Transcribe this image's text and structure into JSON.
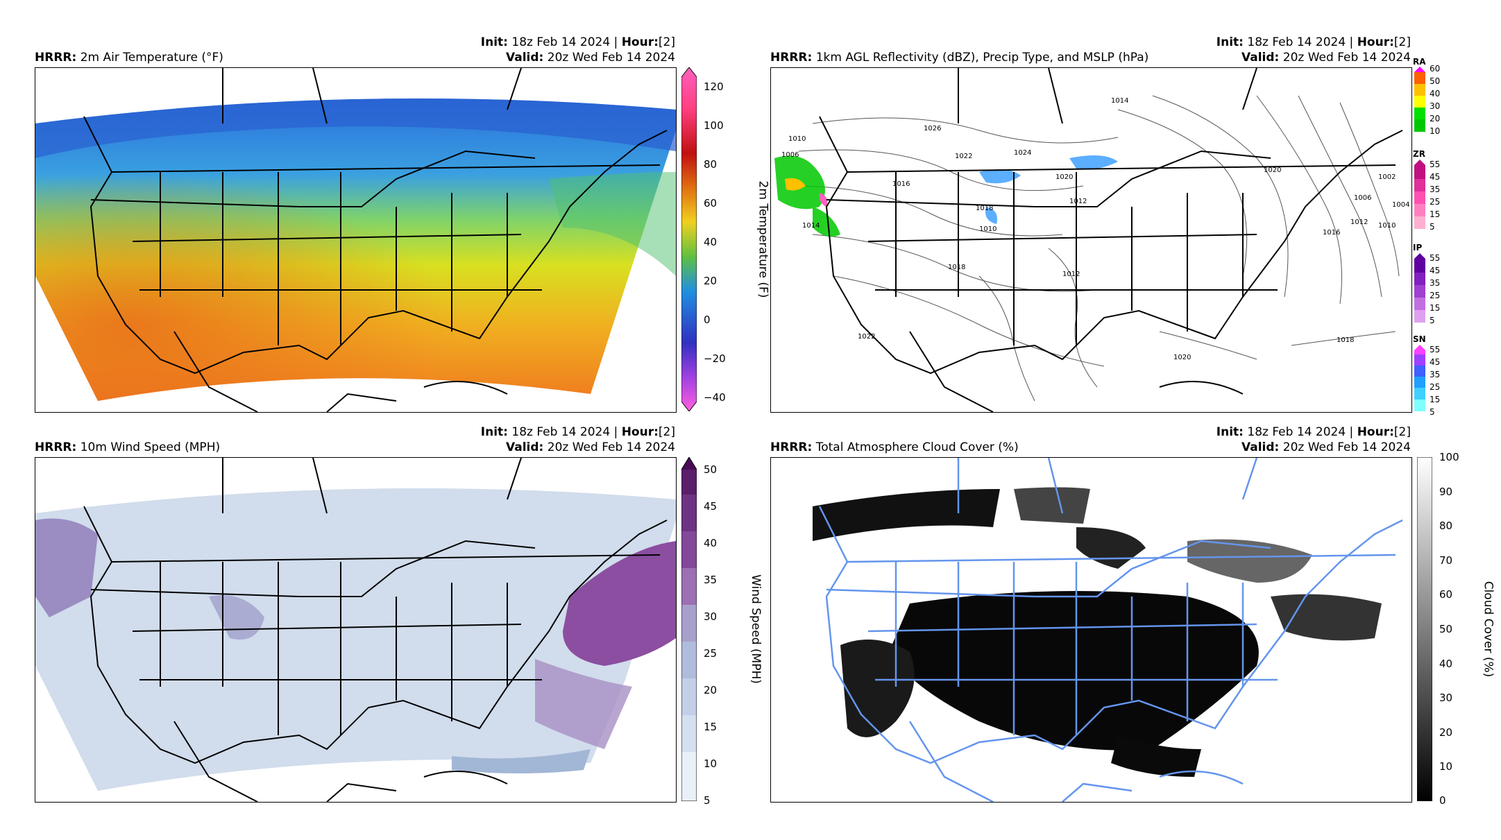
{
  "panels": [
    {
      "model": "HRRR",
      "title": "2m Air Temperature (°F)",
      "init_label": "Init",
      "init_value": "18z Feb 14 2024",
      "hour_label": "Hour",
      "hour_value": "[2]",
      "valid_label": "Valid",
      "valid_value": "20z Wed Feb 14 2024",
      "colorbar_label": "2m Temperature (F)",
      "ticks": [
        "120",
        "100",
        "80",
        "60",
        "40",
        "20",
        "0",
        "−20",
        "−40"
      ]
    },
    {
      "model": "HRRR",
      "title": "1km AGL Reflectivity (dBZ), Precip Type, and MSLP (hPa)",
      "init_label": "Init",
      "init_value": "18z Feb 14 2024",
      "hour_label": "Hour",
      "hour_value": "[2]",
      "valid_label": "Valid",
      "valid_value": "20z Wed Feb 14 2024",
      "precip_types": [
        {
          "name": "RA",
          "ticks": [
            "60",
            "50",
            "40",
            "30",
            "20",
            "10"
          ]
        },
        {
          "name": "ZR",
          "ticks": [
            "55",
            "45",
            "35",
            "25",
            "15",
            "5"
          ]
        },
        {
          "name": "IP",
          "ticks": [
            "55",
            "45",
            "35",
            "25",
            "15",
            "5"
          ]
        },
        {
          "name": "SN",
          "ticks": [
            "55",
            "45",
            "35",
            "25",
            "15",
            "5"
          ]
        }
      ],
      "isobar_labels": [
        "1014",
        "1026",
        "1022",
        "1010",
        "1006",
        "1016",
        "1014",
        "1024",
        "1020",
        "1012",
        "1010",
        "1018",
        "1018",
        "1022",
        "1020",
        "1018",
        "1012",
        "1016",
        "1012",
        "1010",
        "1006",
        "1002",
        "1004",
        "1020"
      ]
    },
    {
      "model": "HRRR",
      "title": "10m Wind Speed (MPH)",
      "init_label": "Init",
      "init_value": "18z Feb 14 2024",
      "hour_label": "Hour",
      "hour_value": "[2]",
      "valid_label": "Valid",
      "valid_value": "20z Wed Feb 14 2024",
      "colorbar_label": "Wind Speed (MPH)",
      "ticks": [
        "50",
        "45",
        "40",
        "35",
        "30",
        "25",
        "20",
        "15",
        "10",
        "5"
      ]
    },
    {
      "model": "HRRR",
      "title": "Total Atmosphere Cloud Cover (%)",
      "init_label": "Init",
      "init_value": "18z Feb 14 2024",
      "hour_label": "Hour",
      "hour_value": "[2]",
      "valid_label": "Valid",
      "valid_value": "20z Wed Feb 14 2024",
      "colorbar_label": "Cloud Cover (%)",
      "ticks": [
        "100",
        "90",
        "80",
        "70",
        "60",
        "50",
        "40",
        "30",
        "20",
        "10",
        "0"
      ]
    }
  ],
  "colors": {
    "border_black": "#000000",
    "border_blue": "#6495ed",
    "ra": [
      "#00c800",
      "#00e000",
      "#ffff00",
      "#ffc000",
      "#ff6000",
      "#ff00ff"
    ],
    "zr": [
      "#ffb0d0",
      "#ff80c0",
      "#ff50b0",
      "#e0309a",
      "#c01080"
    ],
    "ip": [
      "#e0a0f0",
      "#c070e0",
      "#a040d0",
      "#8020c0",
      "#6000a0"
    ],
    "sn": [
      "#80ffff",
      "#40d0ff",
      "#20a0ff",
      "#4060ff",
      "#a040ff",
      "#ff40ff"
    ]
  }
}
